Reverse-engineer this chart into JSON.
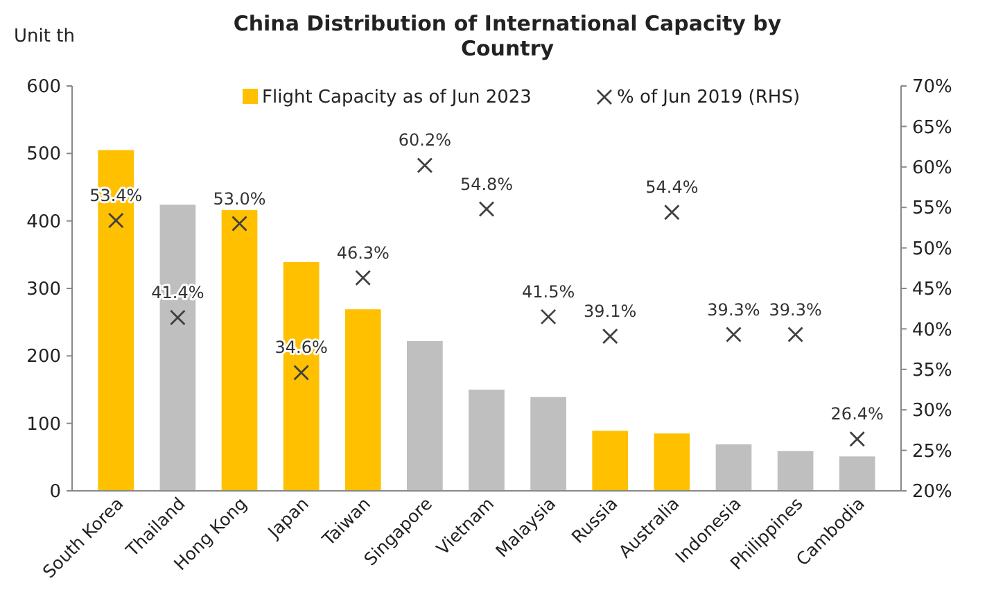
{
  "chart_data": {
    "type": "bar",
    "title": "China Distribution of International Capacity by Country",
    "ylabel": "Unit th",
    "categories": [
      "South Korea",
      "Thailand",
      "Hong Kong",
      "Japan",
      "Taiwan",
      "Singapore",
      "Vietnam",
      "Malaysia",
      "Russia",
      "Australia",
      "Indonesia",
      "Philippines",
      "Cambodia"
    ],
    "series": [
      {
        "name": "Flight Capacity as of Jun 2023",
        "color": "#ffc000",
        "colors": [
          "#ffc000",
          "#bfbfbf",
          "#ffc000",
          "#ffc000",
          "#ffc000",
          "#bfbfbf",
          "#bfbfbf",
          "#bfbfbf",
          "#ffc000",
          "#ffc000",
          "#bfbfbf",
          "#bfbfbf",
          "#bfbfbf"
        ],
        "values": [
          505,
          424,
          416,
          339,
          269,
          222,
          150,
          139,
          89,
          85,
          69,
          59,
          51
        ]
      },
      {
        "name": "% of Jun 2019 (RHS)",
        "type": "scatter",
        "axis": "y2",
        "color": "#404040",
        "marker": "cross",
        "data_labels": true,
        "value_labels": [
          "53.4%",
          "41.4%",
          "53.0%",
          "34.6%",
          "46.3%",
          "60.2%",
          "54.8%",
          "41.5%",
          "39.1%",
          "54.4%",
          "39.3%",
          "39.3%",
          "26.4%"
        ],
        "values": [
          53.4,
          41.4,
          53.0,
          34.6,
          46.3,
          60.2,
          54.8,
          41.5,
          39.1,
          54.4,
          39.3,
          39.3,
          26.4
        ]
      }
    ],
    "ylim": [
      0,
      600
    ],
    "yticks": [
      0,
      100,
      200,
      300,
      400,
      500,
      600
    ],
    "y2lim": [
      20,
      70
    ],
    "y2ticks": [
      {
        "value": 20,
        "label": "20%"
      },
      {
        "value": 25,
        "label": "25%"
      },
      {
        "value": 30,
        "label": "30%"
      },
      {
        "value": 35,
        "label": "35%"
      },
      {
        "value": 40,
        "label": "40%"
      },
      {
        "value": 45,
        "label": "45%"
      },
      {
        "value": 50,
        "label": "50%"
      },
      {
        "value": 55,
        "label": "55%"
      },
      {
        "value": 60,
        "label": "60%"
      },
      {
        "value": 65,
        "label": "65%"
      },
      {
        "value": 70,
        "label": "70%"
      }
    ],
    "grid": false,
    "legend": "top"
  }
}
